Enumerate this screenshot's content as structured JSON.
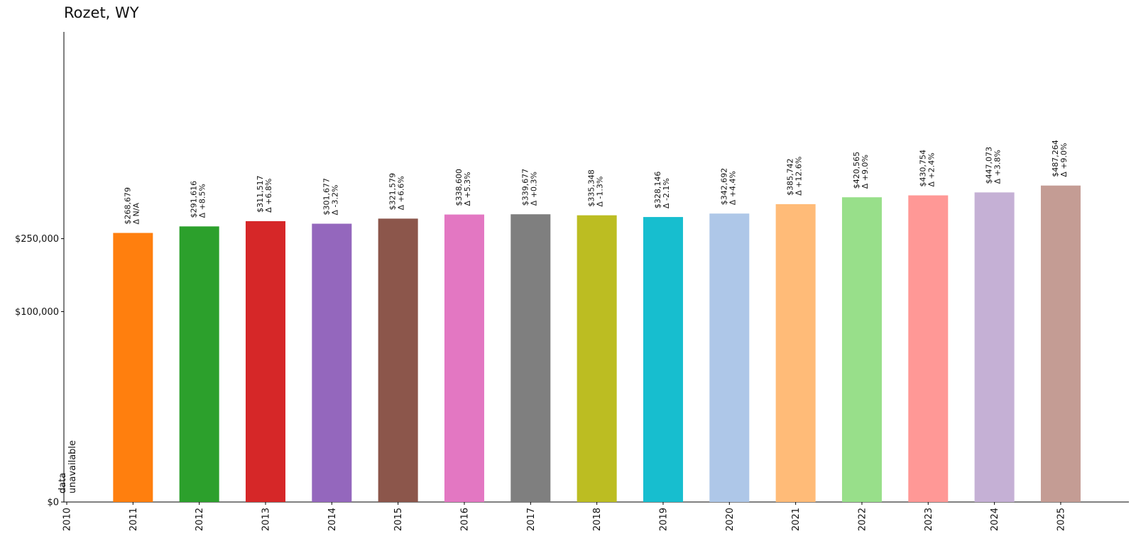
{
  "chart_data": {
    "type": "bar",
    "title": "Rozet, WY",
    "xlabel": "",
    "ylabel": "",
    "categories": [
      "2010",
      "2011",
      "2012",
      "2013",
      "2014",
      "2015",
      "2016",
      "2017",
      "2018",
      "2019",
      "2020",
      "2021",
      "2022",
      "2023",
      "2024",
      "2025"
    ],
    "values": [
      null,
      268679,
      291616,
      311517,
      301677,
      321579,
      338600,
      339677,
      335348,
      328146,
      342692,
      385742,
      420565,
      430754,
      447073,
      487264
    ],
    "value_labels": [
      "",
      "$268,679",
      "$291,616",
      "$311,517",
      "$301,677",
      "$321,579",
      "$338,600",
      "$339,677",
      "$335,348",
      "$328,146",
      "$342,692",
      "$385,742",
      "$420,565",
      "$430,754",
      "$447,073",
      "$487,264"
    ],
    "change_labels": [
      "",
      "Δ N/A",
      "Δ +8.5%",
      "Δ +6.8%",
      "Δ -3.2%",
      "Δ +6.6%",
      "Δ +5.3%",
      "Δ +0.3%",
      "Δ -1.3%",
      "Δ -2.1%",
      "Δ +4.4%",
      "Δ +12.6%",
      "Δ +9.0%",
      "Δ +2.4%",
      "Δ +3.8%",
      "Δ +9.0%"
    ],
    "colors": [
      "#1f77b4",
      "#ff7f0e",
      "#2ca02c",
      "#d62728",
      "#9467bd",
      "#8c564b",
      "#e377c2",
      "#7f7f7f",
      "#bcbd22",
      "#17becf",
      "#aec7e8",
      "#ffbb78",
      "#98df8a",
      "#ff9896",
      "#c5b0d5",
      "#c49c94"
    ],
    "unavailable_label_lines": [
      "data",
      "unavailable"
    ],
    "yscale": "symlog",
    "yticks": [
      0,
      100000,
      250000
    ],
    "ytick_labels": [
      "$0",
      "$100,000",
      "$250,000"
    ],
    "ylim": [
      0,
      650000
    ],
    "grid": false,
    "legend": "none"
  }
}
